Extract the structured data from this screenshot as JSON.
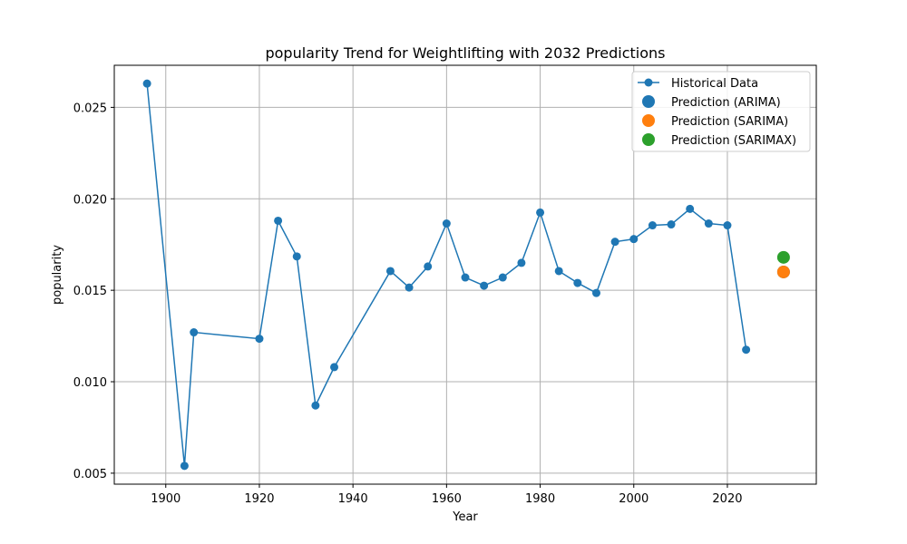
{
  "chart_data": {
    "type": "line",
    "title": "popularity Trend for Weightlifting with 2032 Predictions",
    "xlabel": "Year",
    "ylabel": "popularity",
    "xlim": [
      1889,
      2039
    ],
    "ylim": [
      0.0044,
      0.0273
    ],
    "xticks": [
      1900,
      1920,
      1940,
      1960,
      1980,
      2000,
      2020
    ],
    "yticks": [
      0.005,
      0.01,
      0.015,
      0.02,
      0.025
    ],
    "ytick_labels": [
      "0.005",
      "0.010",
      "0.015",
      "0.020",
      "0.025"
    ],
    "grid": true,
    "legend_position": "top-right",
    "series": [
      {
        "name": "Historical Data",
        "kind": "line-marker",
        "color": "#1f77b4",
        "x": [
          1896,
          1904,
          1906,
          1920,
          1924,
          1928,
          1932,
          1936,
          1948,
          1952,
          1956,
          1960,
          1964,
          1968,
          1972,
          1976,
          1980,
          1984,
          1988,
          1992,
          1996,
          2000,
          2004,
          2008,
          2012,
          2016,
          2020,
          2024
        ],
        "y": [
          0.0263,
          0.0054,
          0.0127,
          0.01235,
          0.0188,
          0.01685,
          0.0087,
          0.0108,
          0.01605,
          0.01515,
          0.0163,
          0.01865,
          0.0157,
          0.01525,
          0.0157,
          0.0165,
          0.01925,
          0.01605,
          0.0154,
          0.01485,
          0.01765,
          0.0178,
          0.01855,
          0.0186,
          0.01945,
          0.01865,
          0.01855,
          0.01175
        ]
      },
      {
        "name": "Prediction (ARIMA)",
        "kind": "point",
        "color": "#1f77b4",
        "x": [
          2032
        ],
        "y": [
          0.016
        ]
      },
      {
        "name": "Prediction (SARIMA)",
        "kind": "point",
        "color": "#ff7f0e",
        "x": [
          2032
        ],
        "y": [
          0.016
        ]
      },
      {
        "name": "Prediction (SARIMAX)",
        "kind": "point",
        "color": "#2ca02c",
        "x": [
          2032
        ],
        "y": [
          0.0168
        ]
      }
    ]
  }
}
